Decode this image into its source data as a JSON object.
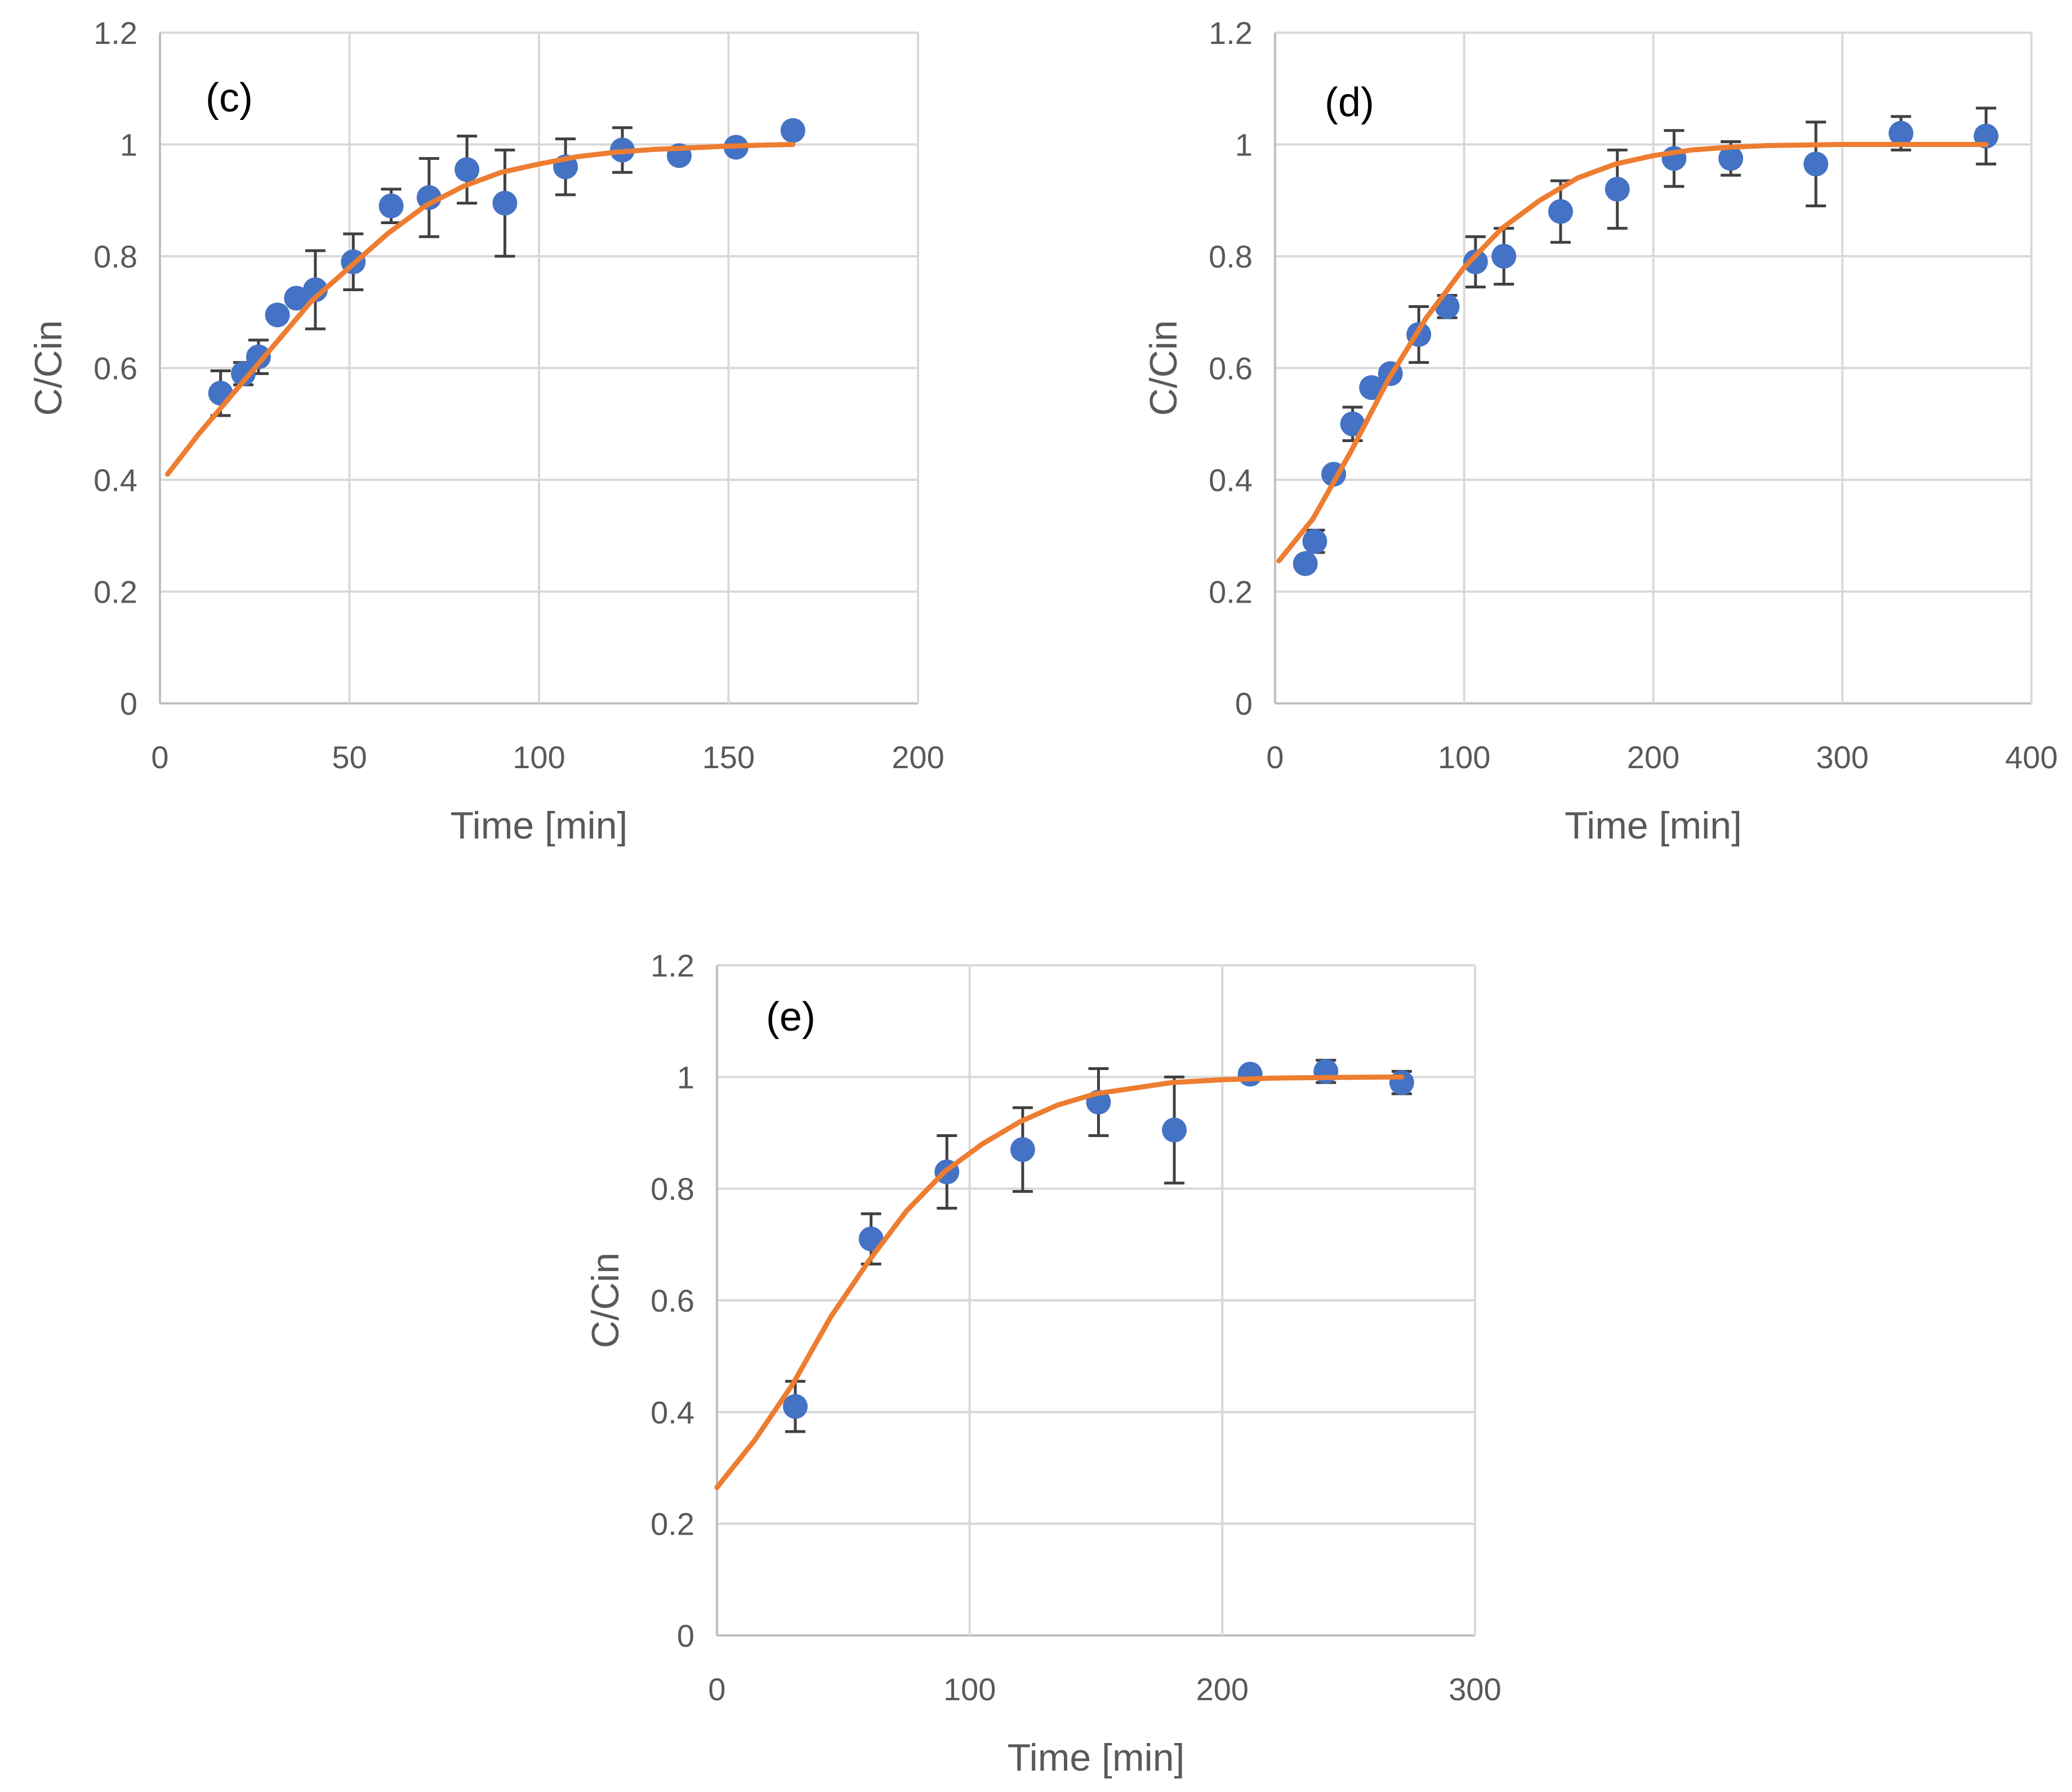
{
  "colors": {
    "marker": "#4472C4",
    "fit_line": "#ED7D31",
    "error_bar": "#404040",
    "grid": "#D9D9D9",
    "text": "#595959"
  },
  "chart_data": [
    {
      "type": "scatter",
      "panel_label": "(c)",
      "xlabel": "Time [min]",
      "ylabel": "C/Cin",
      "xlim": [
        0,
        200
      ],
      "ylim": [
        0,
        1.2
      ],
      "xticks": [
        "0",
        "50",
        "100",
        "150",
        "200"
      ],
      "yticks": [
        "0",
        "0.2",
        "0.4",
        "0.6",
        "0.8",
        "1",
        "1.2"
      ],
      "grid": true,
      "points": [
        {
          "x": 16,
          "y": 0.555,
          "err": 0.04
        },
        {
          "x": 22,
          "y": 0.59,
          "err": 0.02
        },
        {
          "x": 26,
          "y": 0.62,
          "err": 0.03
        },
        {
          "x": 31,
          "y": 0.695,
          "err": 0.0
        },
        {
          "x": 36,
          "y": 0.725,
          "err": 0.0
        },
        {
          "x": 41,
          "y": 0.74,
          "err": 0.07
        },
        {
          "x": 51,
          "y": 0.79,
          "err": 0.05
        },
        {
          "x": 61,
          "y": 0.89,
          "err": 0.03
        },
        {
          "x": 71,
          "y": 0.905,
          "err": 0.07
        },
        {
          "x": 81,
          "y": 0.955,
          "err": 0.06
        },
        {
          "x": 91,
          "y": 0.895,
          "err": 0.095
        },
        {
          "x": 107,
          "y": 0.96,
          "err": 0.05
        },
        {
          "x": 122,
          "y": 0.99,
          "err": 0.04
        },
        {
          "x": 137,
          "y": 0.98,
          "err": 0.0
        },
        {
          "x": 152,
          "y": 0.995,
          "err": 0.0
        },
        {
          "x": 167,
          "y": 1.025,
          "err": 0.01
        }
      ],
      "fit": {
        "x": [
          2,
          10,
          20,
          30,
          40,
          50,
          60,
          70,
          80,
          90,
          100,
          110,
          120,
          130,
          140,
          150,
          160,
          167
        ],
        "y": [
          0.41,
          0.48,
          0.56,
          0.64,
          0.72,
          0.78,
          0.84,
          0.89,
          0.925,
          0.95,
          0.965,
          0.978,
          0.986,
          0.991,
          0.994,
          0.997,
          0.999,
          1.0
        ]
      }
    },
    {
      "type": "scatter",
      "panel_label": "(d)",
      "xlabel": "Time [min]",
      "ylabel": "C/Cin",
      "xlim": [
        0,
        400
      ],
      "ylim": [
        0,
        1.2
      ],
      "xticks": [
        "0",
        "100",
        "200",
        "300",
        "400"
      ],
      "yticks": [
        "0",
        "0.2",
        "0.4",
        "0.6",
        "0.8",
        "1",
        "1.2"
      ],
      "grid": true,
      "points": [
        {
          "x": 16,
          "y": 0.25,
          "err": 0.0
        },
        {
          "x": 21,
          "y": 0.29,
          "err": 0.02
        },
        {
          "x": 31,
          "y": 0.41,
          "err": 0.0
        },
        {
          "x": 41,
          "y": 0.5,
          "err": 0.03
        },
        {
          "x": 51,
          "y": 0.565,
          "err": 0.0
        },
        {
          "x": 61,
          "y": 0.59,
          "err": 0.0
        },
        {
          "x": 76,
          "y": 0.66,
          "err": 0.05
        },
        {
          "x": 91,
          "y": 0.71,
          "err": 0.02
        },
        {
          "x": 106,
          "y": 0.79,
          "err": 0.045
        },
        {
          "x": 121,
          "y": 0.8,
          "err": 0.05
        },
        {
          "x": 151,
          "y": 0.88,
          "err": 0.055
        },
        {
          "x": 181,
          "y": 0.92,
          "err": 0.07
        },
        {
          "x": 211,
          "y": 0.975,
          "err": 0.05
        },
        {
          "x": 241,
          "y": 0.975,
          "err": 0.03
        },
        {
          "x": 286,
          "y": 0.965,
          "err": 0.075
        },
        {
          "x": 331,
          "y": 1.02,
          "err": 0.03
        },
        {
          "x": 376,
          "y": 1.015,
          "err": 0.05
        }
      ],
      "fit": {
        "x": [
          2,
          20,
          40,
          60,
          80,
          100,
          120,
          140,
          160,
          180,
          200,
          220,
          240,
          260,
          280,
          300,
          340,
          376
        ],
        "y": [
          0.255,
          0.33,
          0.45,
          0.58,
          0.69,
          0.78,
          0.85,
          0.9,
          0.94,
          0.965,
          0.98,
          0.99,
          0.995,
          0.998,
          0.999,
          1.0,
          1.0,
          1.0
        ]
      }
    },
    {
      "type": "scatter",
      "panel_label": "(e)",
      "xlabel": "Time [min]",
      "ylabel": "C/Cin",
      "xlim": [
        0,
        300
      ],
      "ylim": [
        0,
        1.2
      ],
      "xticks": [
        "0",
        "100",
        "200",
        "300"
      ],
      "yticks": [
        "0",
        "0.2",
        "0.4",
        "0.6",
        "0.8",
        "1",
        "1.2"
      ],
      "grid": true,
      "points": [
        {
          "x": 31,
          "y": 0.41,
          "err": 0.045
        },
        {
          "x": 61,
          "y": 0.71,
          "err": 0.045
        },
        {
          "x": 91,
          "y": 0.83,
          "err": 0.065
        },
        {
          "x": 121,
          "y": 0.87,
          "err": 0.075
        },
        {
          "x": 151,
          "y": 0.955,
          "err": 0.06
        },
        {
          "x": 181,
          "y": 0.905,
          "err": 0.095
        },
        {
          "x": 211,
          "y": 1.005,
          "err": 0.0
        },
        {
          "x": 241,
          "y": 1.01,
          "err": 0.02
        },
        {
          "x": 271,
          "y": 0.99,
          "err": 0.02
        }
      ],
      "fit": {
        "x": [
          0,
          15,
          30,
          45,
          60,
          75,
          90,
          105,
          120,
          135,
          150,
          165,
          180,
          200,
          220,
          240,
          271
        ],
        "y": [
          0.265,
          0.35,
          0.45,
          0.57,
          0.67,
          0.76,
          0.83,
          0.88,
          0.92,
          0.95,
          0.97,
          0.98,
          0.99,
          0.995,
          0.998,
          0.999,
          1.0
        ]
      }
    }
  ]
}
